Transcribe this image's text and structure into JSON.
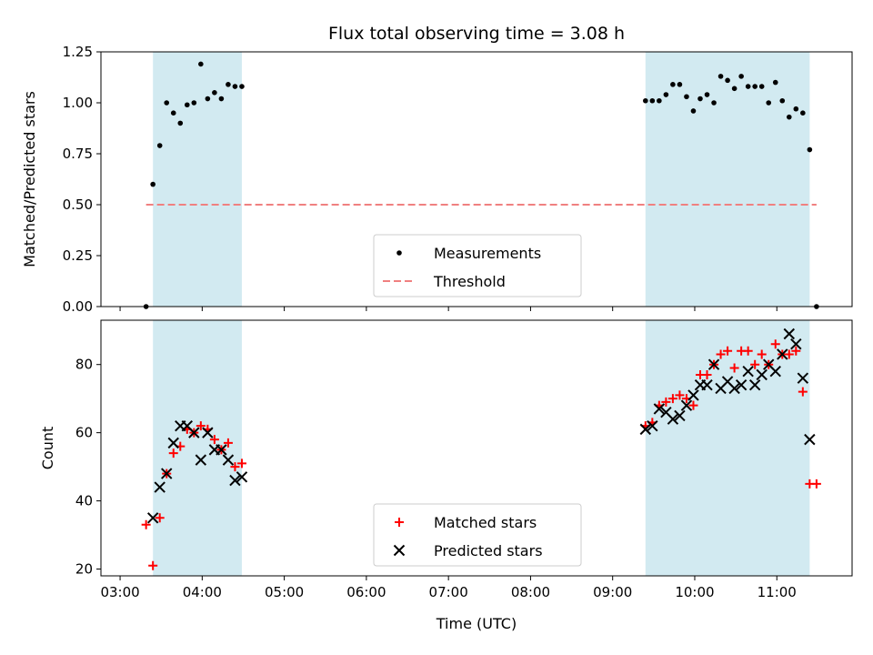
{
  "chart_data": {
    "title": "Flux total observing time = 3.08 h",
    "xlabel": "Time (UTC)",
    "x_tick_labels": [
      "03:00",
      "04:00",
      "05:00",
      "06:00",
      "07:00",
      "08:00",
      "09:00",
      "10:00",
      "11:00"
    ],
    "shaded_ranges": [
      [
        "03:24",
        "04:29"
      ],
      [
        "09:24",
        "11:24"
      ]
    ],
    "shade_color": "#add8e6",
    "panels": [
      {
        "type": "scatter",
        "ylabel": "Matched/Predicted stars",
        "ylim": [
          0,
          1.25
        ],
        "yticks": [
          "0.00",
          "0.25",
          "0.50",
          "0.75",
          "1.00",
          "1.25"
        ],
        "legend_position": "lower-center",
        "series": [
          {
            "name": "Measurements",
            "marker": "dot",
            "color": "#000000",
            "x": [
              "03:19",
              "03:24",
              "03:29",
              "03:34",
              "03:39",
              "03:44",
              "03:49",
              "03:54",
              "03:59",
              "04:04",
              "04:09",
              "04:14",
              "04:19",
              "04:24",
              "04:29",
              "09:24",
              "09:29",
              "09:34",
              "09:39",
              "09:44",
              "09:49",
              "09:54",
              "09:59",
              "10:04",
              "10:09",
              "10:14",
              "10:19",
              "10:24",
              "10:29",
              "10:34",
              "10:39",
              "10:44",
              "10:49",
              "10:54",
              "10:59",
              "11:04",
              "11:09",
              "11:14",
              "11:19",
              "11:24",
              "11:29"
            ],
            "y": [
              0.0,
              0.6,
              0.79,
              1.0,
              0.95,
              0.9,
              0.99,
              1.0,
              1.19,
              1.02,
              1.05,
              1.02,
              1.09,
              1.08,
              1.08,
              1.01,
              1.01,
              1.01,
              1.04,
              1.09,
              1.09,
              1.03,
              0.96,
              1.02,
              1.04,
              1.0,
              1.13,
              1.11,
              1.07,
              1.13,
              1.08,
              1.08,
              1.08,
              1.0,
              1.1,
              1.01,
              0.93,
              0.97,
              0.95,
              0.77,
              0.0
            ]
          },
          {
            "name": "Threshold",
            "marker": "dashed-line",
            "color": "#f08080",
            "x": [
              "03:19",
              "11:29"
            ],
            "y": [
              0.5,
              0.5
            ]
          }
        ]
      },
      {
        "type": "scatter",
        "ylabel": "Count",
        "ylim": [
          18,
          93
        ],
        "yticks": [
          "20",
          "40",
          "60",
          "80"
        ],
        "legend_position": "lower-center",
        "series": [
          {
            "name": "Matched stars",
            "marker": "plus",
            "color": "#ff0000",
            "x": [
              "03:19",
              "03:24",
              "03:29",
              "03:34",
              "03:39",
              "03:44",
              "03:49",
              "03:54",
              "03:59",
              "04:04",
              "04:09",
              "04:14",
              "04:19",
              "04:24",
              "04:29",
              "09:24",
              "09:29",
              "09:34",
              "09:39",
              "09:44",
              "09:49",
              "09:54",
              "09:59",
              "10:04",
              "10:09",
              "10:14",
              "10:19",
              "10:24",
              "10:29",
              "10:34",
              "10:39",
              "10:44",
              "10:49",
              "10:54",
              "10:59",
              "11:04",
              "11:09",
              "11:14",
              "11:19",
              "11:24",
              "11:29"
            ],
            "y": [
              33,
              21,
              35,
              48,
              54,
              56,
              61,
              60,
              62,
              61,
              58,
              55,
              57,
              50,
              51,
              62,
              63,
              68,
              69,
              70,
              71,
              70,
              68,
              77,
              77,
              80,
              83,
              84,
              79,
              84,
              84,
              80,
              83,
              80,
              86,
              83,
              83,
              84,
              72,
              45,
              45
            ]
          },
          {
            "name": "Predicted stars",
            "marker": "x",
            "color": "#000000",
            "x": [
              "03:24",
              "03:29",
              "03:34",
              "03:39",
              "03:44",
              "03:49",
              "03:54",
              "03:59",
              "04:04",
              "04:09",
              "04:14",
              "04:19",
              "04:24",
              "04:29",
              "09:24",
              "09:29",
              "09:34",
              "09:39",
              "09:44",
              "09:49",
              "09:54",
              "09:59",
              "10:04",
              "10:09",
              "10:14",
              "10:19",
              "10:24",
              "10:29",
              "10:34",
              "10:39",
              "10:44",
              "10:49",
              "10:54",
              "10:59",
              "11:04",
              "11:09",
              "11:14",
              "11:19",
              "11:24"
            ],
            "y": [
              35,
              44,
              48,
              57,
              62,
              62,
              60,
              52,
              60,
              55,
              55,
              52,
              46,
              47,
              61,
              62,
              67,
              66,
              64,
              65,
              68,
              71,
              74,
              74,
              80,
              73,
              75,
              73,
              74,
              78,
              74,
              77,
              80,
              78,
              83,
              89,
              86,
              76,
              58
            ]
          }
        ]
      }
    ]
  }
}
